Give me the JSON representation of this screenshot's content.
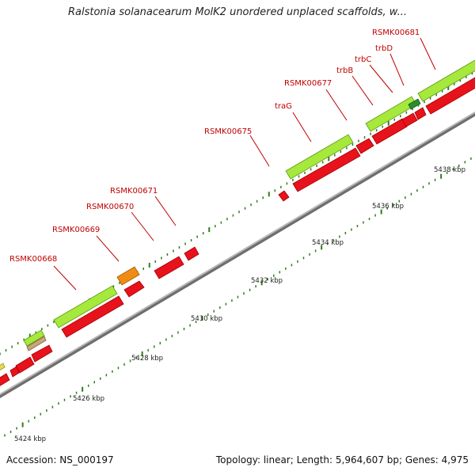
{
  "title": "Ralstonia solanacearum MolK2 unordered unplaced scaffolds, w...",
  "footer": {
    "accession": "Accession: NS_000197",
    "info": "Topology: linear; Length: 5,964,607 bp; Genes: 4,975"
  },
  "ticks": [
    "5424 kbp",
    "5426 kbp",
    "5428 kbp",
    "5430 kbp",
    "5432 kbp",
    "5434 kbp",
    "5436 kbp",
    "5438 kbp"
  ],
  "gene_labels": [
    "RSMK00668",
    "RSMK00669",
    "RSMK00670",
    "RSMK00671",
    "RSMK00675",
    "traG",
    "RSMK00677",
    "trbB",
    "trbC",
    "trbD",
    "RSMK00681"
  ],
  "colors": {
    "backbone": "#9a9a9a",
    "cds": "#e8121c",
    "gene": "#a6e83c",
    "orange_feature": "#f08c14",
    "tan_feature": "#c8a878",
    "dark_green_feature": "#2e8b2e",
    "tick": "#2e7d1a",
    "label": "#c00000"
  }
}
